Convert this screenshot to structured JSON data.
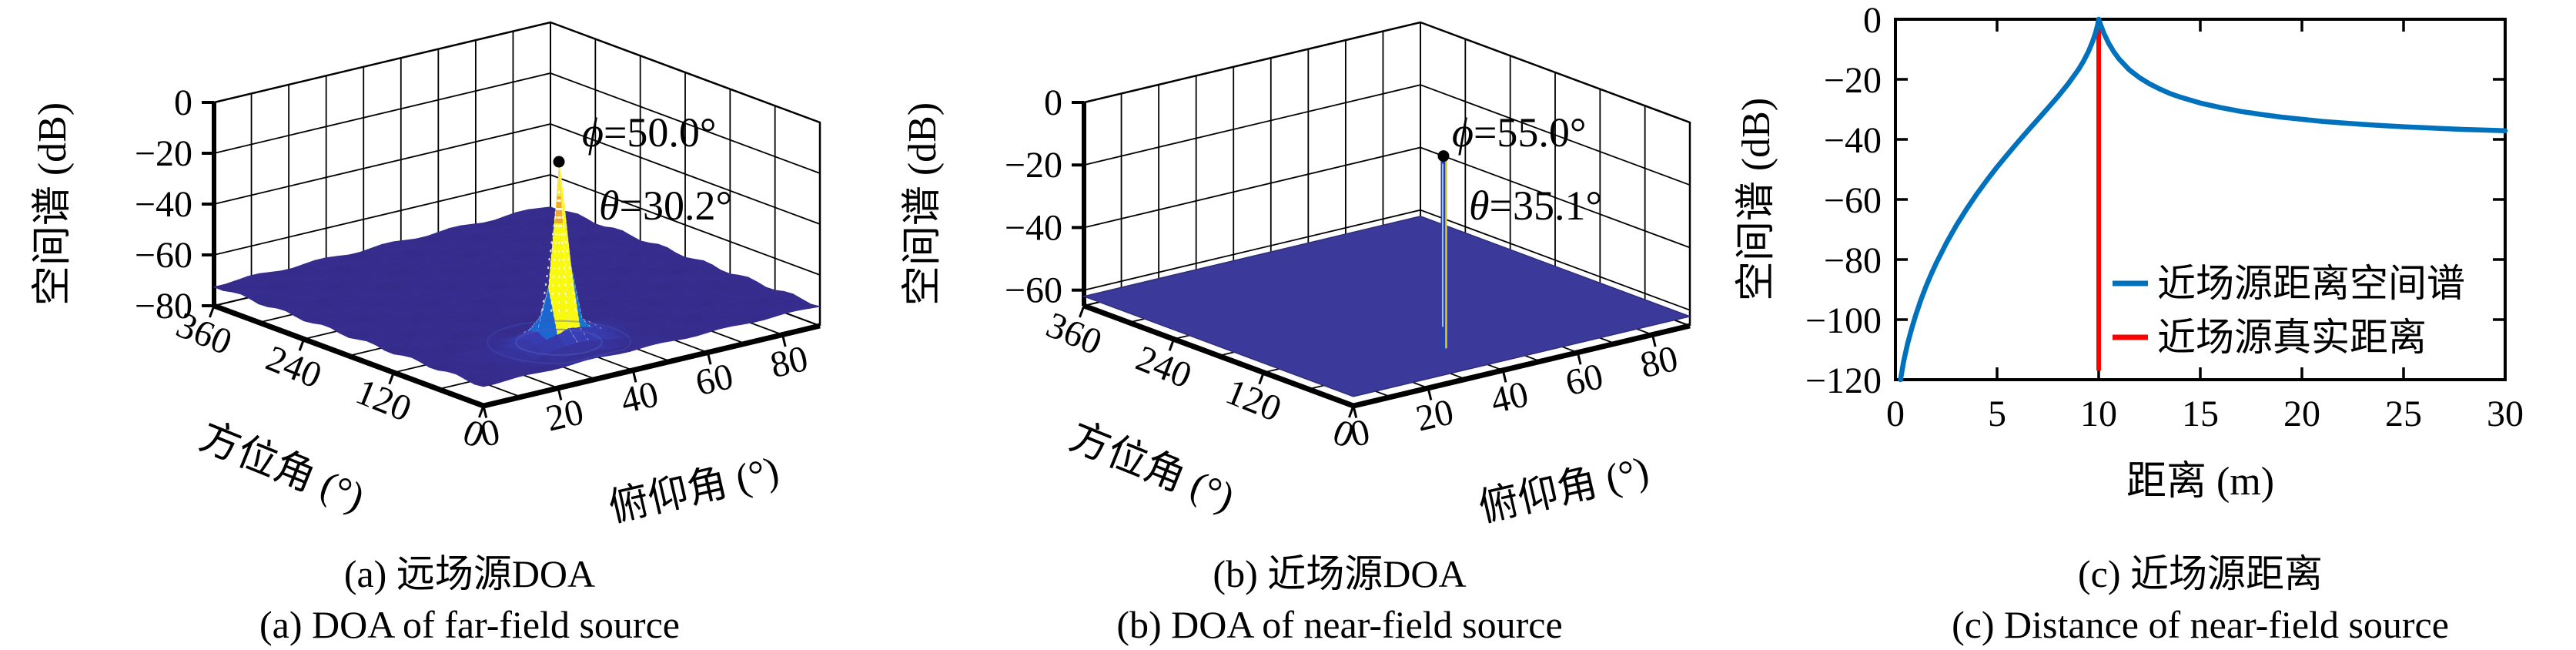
{
  "figure_title": "",
  "captions": [
    {
      "line1": "(a) 远场源DOA",
      "line2": "(a) DOA of far-field source"
    },
    {
      "line1": "(b) 近场源DOA",
      "line2": "(b) DOA of near-field source"
    },
    {
      "line1": "(c) 近场源距离",
      "line2": "(c) Distance of near-field source"
    }
  ],
  "colors": {
    "axis": "#000000",
    "matlab_blue": "#0072bd",
    "true_distance_red": "#f80400",
    "flat_surface_indigo": "#3b3a9a",
    "needle_body": "#2742a8",
    "needle_highlight": "#d8c938",
    "peak_marker": "#000000"
  },
  "chart_data": [
    {
      "type": "surface",
      "panel": "a",
      "description": "3D MUSIC spatial spectrum of far-field source, sharp cone peak",
      "xlabel": "俯仰角 (°)",
      "ylabel": "方位角 (°)",
      "zlabel": "空间谱 (dB)",
      "x_range": [
        0,
        90
      ],
      "x_ticks": [
        0,
        20,
        40,
        60,
        80
      ],
      "y_range": [
        0,
        360
      ],
      "y_ticks": [
        0,
        120,
        240,
        360
      ],
      "z_range": [
        -80,
        0
      ],
      "z_ticks": [
        0,
        -20,
        -40,
        -60,
        -80
      ],
      "baseline_db": -73,
      "peak": {
        "azimuth_deg": 50.0,
        "elevation_deg": 30.2,
        "z_db": 0
      },
      "annotations": [
        {
          "symbol": "ϕ",
          "text": "=50.0°"
        },
        {
          "symbol": "θ",
          "text": "=30.2°"
        }
      ],
      "colormap": "parula",
      "flat": false,
      "cone": {
        "sigma_elev_deg": 2.6,
        "sigma_azim_deg": 7,
        "skirt_sigma_elev_deg": 11,
        "skirt_sigma_azim_deg": 26,
        "skirt_amp": 0.14
      }
    },
    {
      "type": "surface",
      "panel": "b",
      "description": "3D MUSIC spatial spectrum of near-field source, needle-like peak on flat floor",
      "xlabel": "俯仰角 (°)",
      "ylabel": "方位角 (°)",
      "zlabel": "空间谱 (dB)",
      "x_range": [
        0,
        90
      ],
      "x_ticks": [
        0,
        20,
        40,
        60,
        80
      ],
      "y_range": [
        0,
        360
      ],
      "y_ticks": [
        0,
        120,
        240,
        360
      ],
      "z_range": [
        -65,
        0
      ],
      "z_ticks": [
        0,
        -20,
        -40,
        -60
      ],
      "baseline_db": -62,
      "peak": {
        "azimuth_deg": 55.0,
        "elevation_deg": 35.1,
        "z_db": 0
      },
      "annotations": [
        {
          "symbol": "ϕ",
          "text": "=55.0°"
        },
        {
          "symbol": "θ",
          "text": "=35.1°"
        }
      ],
      "colormap": "parula",
      "flat": true
    },
    {
      "type": "line",
      "panel": "c",
      "description": "Distance spectrum of near-field source",
      "xlabel": "距离 (m)",
      "ylabel": "空间谱 (dB)",
      "x_range": [
        0,
        30
      ],
      "x_ticks": [
        0,
        5,
        10,
        15,
        20,
        25,
        30
      ],
      "y_range": [
        -120,
        0
      ],
      "y_ticks": [
        0,
        -20,
        -40,
        -60,
        -80,
        -100,
        -120
      ],
      "grid": false,
      "legend": {
        "frame": false,
        "position": "lower right",
        "entries": [
          "近场源距离空间谱",
          "近场源真实距离"
        ]
      },
      "series": [
        {
          "name": "近场源距离空间谱",
          "color": "#0072bd",
          "points": [
            [
              0.25,
              -120
            ],
            [
              0.4,
              -114
            ],
            [
              0.6,
              -108
            ],
            [
              0.8,
              -103
            ],
            [
              1.0,
              -98.5
            ],
            [
              1.25,
              -93.5
            ],
            [
              1.5,
              -89
            ],
            [
              1.75,
              -85
            ],
            [
              2,
              -81.3
            ],
            [
              2.5,
              -74.6
            ],
            [
              3,
              -68.6
            ],
            [
              3.5,
              -63.2
            ],
            [
              4,
              -58.2
            ],
            [
              4.5,
              -53.6
            ],
            [
              5,
              -49.2
            ],
            [
              5.5,
              -45.1
            ],
            [
              6,
              -41.1
            ],
            [
              6.5,
              -37.2
            ],
            [
              7,
              -33.4
            ],
            [
              7.5,
              -29.6
            ],
            [
              8,
              -25.7
            ],
            [
              8.5,
              -21.5
            ],
            [
              9,
              -16.8
            ],
            [
              9.25,
              -14
            ],
            [
              9.5,
              -10.7
            ],
            [
              9.7,
              -7.4
            ],
            [
              9.85,
              -4.5
            ],
            [
              9.95,
              -1.8
            ],
            [
              10,
              0
            ],
            [
              10.1,
              -1.9
            ],
            [
              10.25,
              -4.6
            ],
            [
              10.5,
              -8.1
            ],
            [
              10.75,
              -10.9
            ],
            [
              11,
              -13.2
            ],
            [
              11.5,
              -16.8
            ],
            [
              12,
              -19.4
            ],
            [
              12.5,
              -21.5
            ],
            [
              13,
              -23.2
            ],
            [
              13.5,
              -24.7
            ],
            [
              14,
              -25.9
            ],
            [
              15,
              -27.9
            ],
            [
              16,
              -29.4
            ],
            [
              17,
              -30.7
            ],
            [
              18,
              -31.7
            ],
            [
              19,
              -32.6
            ],
            [
              20,
              -33.3
            ],
            [
              21,
              -34
            ],
            [
              22,
              -34.5
            ],
            [
              23,
              -35
            ],
            [
              24,
              -35.4
            ],
            [
              25,
              -35.8
            ],
            [
              26,
              -36.1
            ],
            [
              27,
              -36.4
            ],
            [
              28,
              -36.7
            ],
            [
              29,
              -36.9
            ],
            [
              30,
              -37.1
            ]
          ]
        },
        {
          "name": "近场源真实距离",
          "color": "#f80400",
          "vline_x": 10,
          "vline_y_span": [
            0,
            -117
          ]
        }
      ]
    }
  ]
}
